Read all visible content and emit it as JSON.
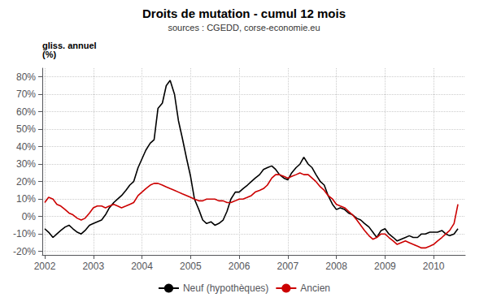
{
  "chart_data": {
    "type": "line",
    "title": "Droits de mutation - cumul 12 mois",
    "subtitle": "sources : CGEDD, corse-economie.eu",
    "ylabel": "gliss. annuel\n(%)",
    "x": [
      2002.0,
      2002.08,
      2002.17,
      2002.25,
      2002.33,
      2002.42,
      2002.5,
      2002.58,
      2002.67,
      2002.75,
      2002.83,
      2002.92,
      2003.0,
      2003.08,
      2003.17,
      2003.25,
      2003.33,
      2003.42,
      2003.5,
      2003.58,
      2003.67,
      2003.75,
      2003.83,
      2003.92,
      2004.0,
      2004.08,
      2004.17,
      2004.25,
      2004.33,
      2004.42,
      2004.5,
      2004.58,
      2004.67,
      2004.75,
      2004.83,
      2004.92,
      2005.0,
      2005.08,
      2005.17,
      2005.25,
      2005.33,
      2005.42,
      2005.5,
      2005.58,
      2005.67,
      2005.75,
      2005.83,
      2005.92,
      2006.0,
      2006.08,
      2006.17,
      2006.25,
      2006.33,
      2006.42,
      2006.5,
      2006.58,
      2006.67,
      2006.75,
      2006.83,
      2006.92,
      2007.0,
      2007.08,
      2007.17,
      2007.25,
      2007.33,
      2007.42,
      2007.5,
      2007.58,
      2007.67,
      2007.75,
      2007.83,
      2007.92,
      2008.0,
      2008.08,
      2008.17,
      2008.25,
      2008.33,
      2008.42,
      2008.5,
      2008.58,
      2008.67,
      2008.75,
      2008.83,
      2008.92,
      2009.0,
      2009.08,
      2009.17,
      2009.25,
      2009.33,
      2009.42,
      2009.5,
      2009.58,
      2009.67,
      2009.75,
      2009.83,
      2009.92,
      2010.0,
      2010.08,
      2010.17,
      2010.25,
      2010.33,
      2010.42,
      2010.5
    ],
    "series": [
      {
        "name": "Neuf (hypothèques)",
        "color": "#000000",
        "values": [
          -0.07,
          -0.09,
          -0.12,
          -0.1,
          -0.08,
          -0.06,
          -0.05,
          -0.07,
          -0.09,
          -0.1,
          -0.08,
          -0.05,
          -0.04,
          -0.03,
          -0.02,
          0.01,
          0.05,
          0.08,
          0.1,
          0.12,
          0.15,
          0.18,
          0.2,
          0.28,
          0.33,
          0.38,
          0.42,
          0.44,
          0.62,
          0.65,
          0.75,
          0.78,
          0.7,
          0.55,
          0.45,
          0.33,
          0.23,
          0.1,
          0.04,
          -0.02,
          -0.04,
          -0.03,
          -0.05,
          -0.04,
          -0.02,
          0.03,
          0.1,
          0.14,
          0.14,
          0.16,
          0.18,
          0.2,
          0.22,
          0.24,
          0.27,
          0.28,
          0.29,
          0.27,
          0.24,
          0.22,
          0.21,
          0.25,
          0.28,
          0.3,
          0.34,
          0.3,
          0.28,
          0.24,
          0.2,
          0.18,
          0.12,
          0.07,
          0.04,
          0.05,
          0.04,
          0.02,
          0.01,
          -0.01,
          -0.02,
          -0.04,
          -0.06,
          -0.09,
          -0.12,
          -0.08,
          -0.07,
          -0.1,
          -0.12,
          -0.14,
          -0.13,
          -0.12,
          -0.11,
          -0.12,
          -0.12,
          -0.1,
          -0.1,
          -0.09,
          -0.09,
          -0.09,
          -0.08,
          -0.1,
          -0.11,
          -0.1,
          -0.07
        ]
      },
      {
        "name": "Ancien",
        "color": "#cc0000",
        "values": [
          0.08,
          0.11,
          0.1,
          0.07,
          0.06,
          0.04,
          0.02,
          0.01,
          -0.01,
          -0.02,
          -0.01,
          0.02,
          0.05,
          0.06,
          0.06,
          0.05,
          0.06,
          0.07,
          0.06,
          0.05,
          0.06,
          0.07,
          0.08,
          0.12,
          0.14,
          0.16,
          0.18,
          0.19,
          0.19,
          0.18,
          0.17,
          0.16,
          0.15,
          0.14,
          0.13,
          0.12,
          0.11,
          0.1,
          0.09,
          0.09,
          0.1,
          0.1,
          0.1,
          0.09,
          0.09,
          0.08,
          0.08,
          0.09,
          0.1,
          0.1,
          0.11,
          0.12,
          0.14,
          0.15,
          0.16,
          0.18,
          0.22,
          0.24,
          0.24,
          0.23,
          0.22,
          0.23,
          0.24,
          0.25,
          0.24,
          0.24,
          0.22,
          0.2,
          0.17,
          0.15,
          0.12,
          0.1,
          0.07,
          0.06,
          0.05,
          0.03,
          0.01,
          -0.02,
          -0.05,
          -0.08,
          -0.11,
          -0.13,
          -0.12,
          -0.1,
          -0.1,
          -0.12,
          -0.14,
          -0.16,
          -0.15,
          -0.14,
          -0.15,
          -0.16,
          -0.17,
          -0.18,
          -0.18,
          -0.17,
          -0.16,
          -0.14,
          -0.12,
          -0.1,
          -0.08,
          -0.04,
          0.07
        ]
      }
    ],
    "xlim": [
      2001.95,
      2010.65
    ],
    "xticks": [
      2002,
      2003,
      2004,
      2005,
      2006,
      2007,
      2008,
      2009,
      2010
    ],
    "ylim": [
      -0.22,
      0.85
    ],
    "yticks": [
      {
        "value": -0.2,
        "label": "-20%"
      },
      {
        "value": -0.1,
        "label": "-10%"
      },
      {
        "value": 0.0,
        "label": "0%"
      },
      {
        "value": 0.1,
        "label": "10%"
      },
      {
        "value": 0.2,
        "label": "20%"
      },
      {
        "value": 0.3,
        "label": "30%"
      },
      {
        "value": 0.4,
        "label": "40%"
      },
      {
        "value": 0.5,
        "label": "50%"
      },
      {
        "value": 0.6,
        "label": "60%"
      },
      {
        "value": 0.7,
        "label": "70%"
      },
      {
        "value": 0.8,
        "label": "80%"
      }
    ],
    "grid": true,
    "legend": "bottom"
  }
}
